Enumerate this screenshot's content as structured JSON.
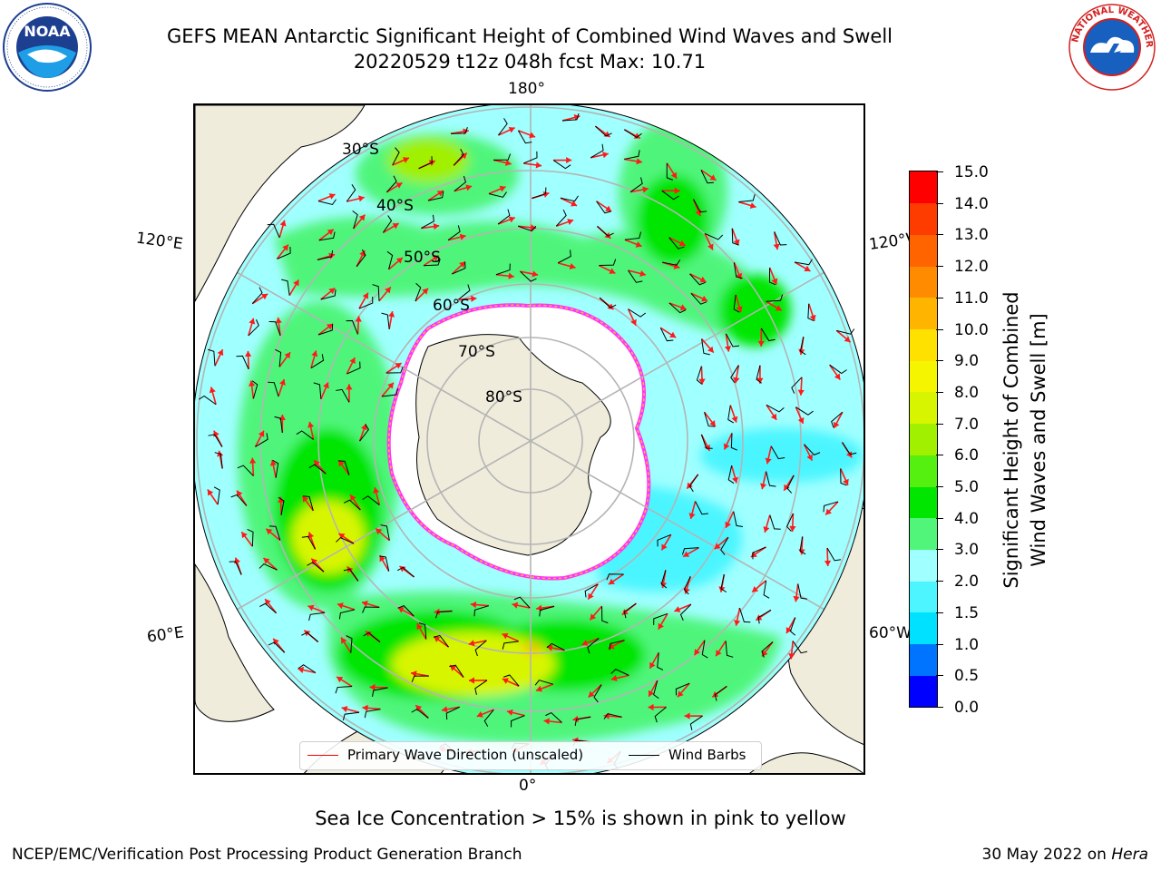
{
  "title": {
    "line1": "GEFS MEAN Antarctic Significant Height of Combined Wind Waves and Swell",
    "line2": "20220529 t12z 048h fcst   Max: 10.71"
  },
  "logos": {
    "left": {
      "icon": "noaa-logo",
      "text": "NOAA"
    },
    "right": {
      "icon": "national-weather-service-logo",
      "text": "NATIONAL WEATHER SERVICE"
    }
  },
  "map": {
    "projection": "south-polar-stereographic",
    "longitude_labels": {
      "top": "180°",
      "bottom": "0°",
      "upper_left": "120°E",
      "upper_right": "120°W",
      "lower_left": "60°E",
      "lower_right": "60°W"
    },
    "latitude_labels": [
      "30°S",
      "40°S",
      "50°S",
      "60°S",
      "70°S",
      "80°S"
    ],
    "colors": {
      "land": "#efecdc",
      "antarctic_ice": "#ffffff",
      "graticule": "#b4b4b4",
      "wave_arrow": "#ff1a1a",
      "wind_barb": "#000000",
      "sea_ice_edge": [
        "#ff33ff",
        "#ffb732"
      ]
    }
  },
  "legend": {
    "primary_wave_label": "Primary Wave Direction (unscaled)",
    "wind_barbs_label": "Wind Barbs",
    "primary_wave_color": "#ff0000",
    "wind_barbs_color": "#000000"
  },
  "colorbar": {
    "label_line1": "Significant Height of Combined",
    "label_line2": "Wind Waves and Swell [m]",
    "ticks": [
      "0.0",
      "0.5",
      "1.0",
      "1.5",
      "2.0",
      "3.0",
      "4.0",
      "5.0",
      "6.0",
      "7.0",
      "8.0",
      "9.0",
      "10.0",
      "11.0",
      "12.0",
      "13.0",
      "14.0",
      "15.0"
    ],
    "colors": [
      "#0000ff",
      "#0073ff",
      "#00e1ff",
      "#4cf5ff",
      "#a0ffff",
      "#50f57a",
      "#00e600",
      "#55f010",
      "#a0f000",
      "#d8f500",
      "#f5f500",
      "#ffe100",
      "#ffb400",
      "#ff8c00",
      "#ff6400",
      "#ff3c00",
      "#ff0000"
    ]
  },
  "sea_ice_note": "Sea Ice Concentration > 15% is shown in pink to yellow",
  "footer": {
    "left": "NCEP/EMC/Verification Post Processing Product Generation Branch",
    "date": "30 May 2022 on ",
    "machine": "Hera"
  }
}
